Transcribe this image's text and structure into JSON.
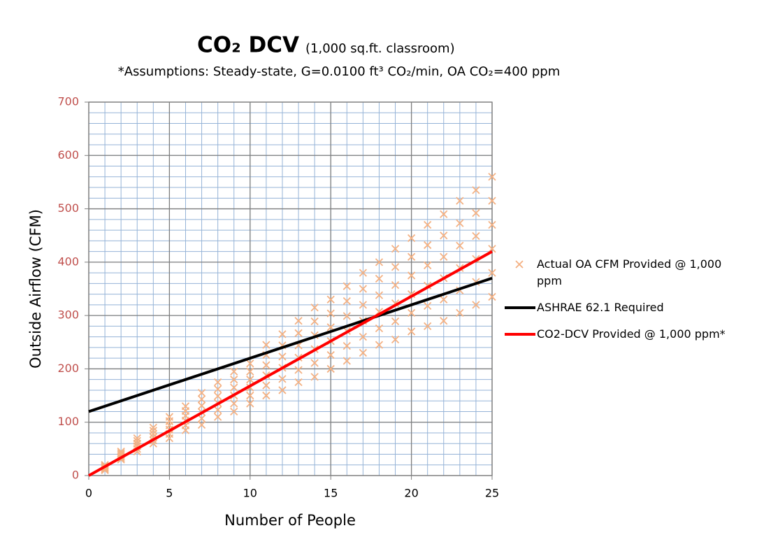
{
  "chart_data": {
    "type": "scatter",
    "title": "CO₂ DCV",
    "title_note": "(1,000 sq.ft. classroom)",
    "subtitle": "*Assumptions: Steady-state, G=0.0100 ft³ CO₂/min, OA CO₂=400 ppm",
    "x_label": "Number of People",
    "y_label": "Outside Airflow (CFM)",
    "xlim": [
      0,
      25
    ],
    "xticks": [
      0,
      5,
      10,
      15,
      20,
      25
    ],
    "ylim": [
      0,
      700
    ],
    "yticks": [
      0,
      100,
      200,
      300,
      400,
      500,
      600,
      700
    ],
    "grid": true,
    "minor_grid": {
      "x": 1,
      "y": 20
    },
    "legend": "right",
    "series": [
      {
        "name": "Actual OA CFM Provided @ 1,000 ppm",
        "type": "scatter",
        "color": "#f4b183",
        "x": [
          1,
          1,
          1,
          1,
          1,
          1,
          2,
          2,
          2,
          2,
          2,
          2,
          3,
          3,
          3,
          3,
          3,
          3,
          4,
          4,
          4,
          4,
          4,
          4,
          5,
          5,
          5,
          5,
          5,
          5,
          6,
          6,
          6,
          6,
          6,
          6,
          7,
          7,
          7,
          7,
          7,
          7,
          8,
          8,
          8,
          8,
          8,
          8,
          9,
          9,
          9,
          9,
          9,
          9,
          10,
          10,
          10,
          10,
          10,
          10,
          11,
          11,
          11,
          11,
          11,
          11,
          12,
          12,
          12,
          12,
          12,
          12,
          13,
          13,
          13,
          13,
          13,
          13,
          14,
          14,
          14,
          14,
          14,
          14,
          15,
          15,
          15,
          15,
          15,
          15,
          16,
          16,
          16,
          16,
          16,
          16,
          17,
          17,
          17,
          17,
          17,
          17,
          18,
          18,
          18,
          18,
          18,
          18,
          19,
          19,
          19,
          19,
          19,
          19,
          20,
          20,
          20,
          20,
          20,
          20,
          21,
          21,
          21,
          21,
          21,
          21,
          22,
          22,
          22,
          22,
          22,
          22,
          23,
          23,
          23,
          23,
          23,
          23,
          24,
          24,
          24,
          24,
          24,
          24,
          25,
          25,
          25,
          25,
          25,
          25
        ],
        "values": [
          10,
          12,
          14,
          16,
          18,
          20,
          30,
          33,
          36,
          39,
          42,
          45,
          45,
          50,
          55,
          60,
          65,
          70,
          60,
          66,
          72,
          78,
          84,
          90,
          70,
          78,
          86,
          94,
          102,
          110,
          85,
          94,
          103,
          112,
          121,
          130,
          95,
          107,
          119,
          131,
          143,
          155,
          110,
          123,
          136,
          149,
          162,
          175,
          120,
          135,
          150,
          165,
          180,
          195,
          135,
          150,
          165,
          180,
          195,
          210,
          150,
          169,
          188,
          207,
          226,
          245,
          160,
          181,
          202,
          223,
          244,
          265,
          175,
          198,
          221,
          244,
          267,
          290,
          185,
          211,
          237,
          263,
          289,
          315,
          200,
          226,
          252,
          278,
          304,
          330,
          215,
          243,
          271,
          299,
          327,
          355,
          230,
          260,
          290,
          320,
          350,
          380,
          245,
          276,
          307,
          338,
          369,
          400,
          255,
          289,
          323,
          357,
          391,
          425,
          270,
          305,
          340,
          375,
          410,
          445,
          280,
          318,
          356,
          394,
          432,
          470,
          290,
          330,
          370,
          410,
          450,
          490,
          305,
          347,
          389,
          431,
          473,
          515,
          320,
          363,
          406,
          449,
          492,
          535,
          335,
          380,
          425,
          470,
          515,
          560
        ]
      },
      {
        "name": "ASHRAE 62.1 Required",
        "type": "line",
        "color": "#000000",
        "x": [
          0,
          25
        ],
        "values": [
          120,
          370
        ]
      },
      {
        "name": "CO2-DCV Provided @ 1,000 ppm*",
        "type": "line",
        "color": "#ff0000",
        "x": [
          0,
          25
        ],
        "values": [
          0,
          420
        ]
      }
    ]
  }
}
